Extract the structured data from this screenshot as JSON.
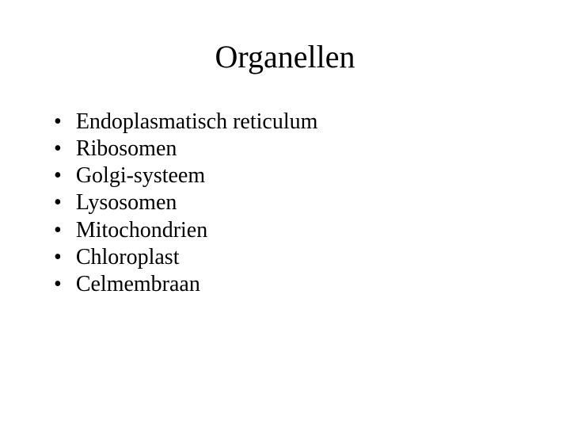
{
  "slide": {
    "title": "Organellen",
    "title_fontsize": 40,
    "body_fontsize": 28,
    "background_color": "#ffffff",
    "text_color": "#000000",
    "font_family": "Times New Roman",
    "bullet_marker": "•",
    "items": [
      {
        "label": "Endoplasmatisch reticulum"
      },
      {
        "label": "Ribosomen"
      },
      {
        "label": "Golgi-systeem"
      },
      {
        "label": "Lysosomen"
      },
      {
        "label": "Mitochondrien"
      },
      {
        "label": "Chloroplast"
      },
      {
        "label": "Celmembraan"
      }
    ]
  }
}
